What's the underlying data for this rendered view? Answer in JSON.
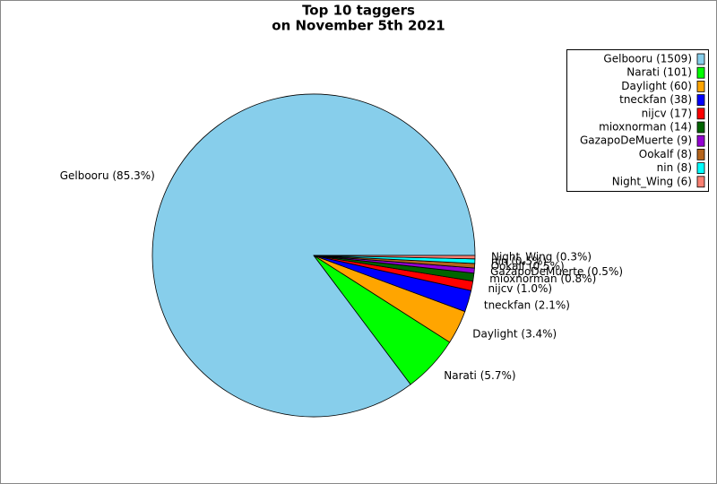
{
  "chart_data": {
    "type": "pie",
    "title": [
      "Top 10 taggers",
      "on November 5th 2021"
    ],
    "values": [
      1509,
      101,
      60,
      38,
      17,
      14,
      9,
      8,
      8,
      6
    ],
    "legend_labels": [
      "Gelbooru (1509)",
      "Narati (101)",
      "Daylight (60)",
      "tneckfan (38)",
      "nijcv (17)",
      "mioxnorman (14)",
      "GazapoDeMuerte (9)",
      "Ookalf (8)",
      "nin (8)",
      "Night_Wing (6)"
    ],
    "value_labels": [
      "Gelbooru (85.3%)",
      "Narati (5.7%)",
      "Daylight (3.4%)",
      "tneckfan (2.1%)",
      "nijcv (1.0%)",
      "mioxnorman (0.8%)",
      "GazapoDeMuerte (0.5%)",
      "Ookalf (0.5%)",
      "nin (0.5%)",
      "Night_Wing (0.3%)"
    ],
    "colors": [
      "#87ceeb",
      "#00ff00",
      "#ffa500",
      "#0000ff",
      "#ff0000",
      "#006400",
      "#9400d3",
      "#b5651d",
      "#00ffff",
      "#fa8072"
    ],
    "legend": "upper right"
  }
}
